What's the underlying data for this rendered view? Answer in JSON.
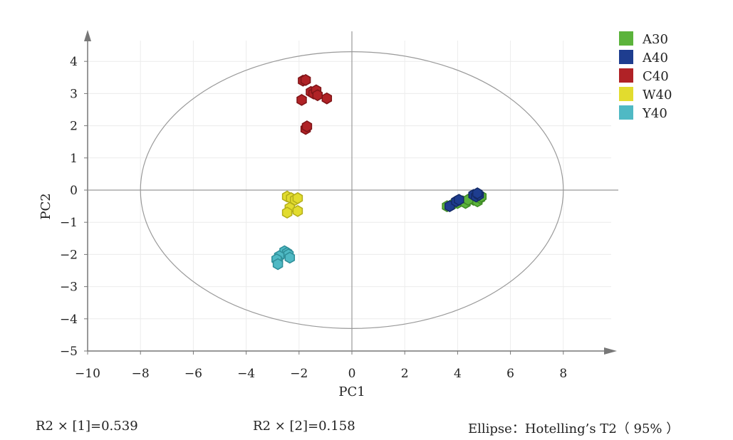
{
  "chart_data": {
    "type": "scatter",
    "title": "",
    "xlabel": "PC1",
    "ylabel": "PC2",
    "xlim": [
      -10,
      10
    ],
    "ylim": [
      -5,
      5
    ],
    "x_ticks": [
      -10,
      -8,
      -6,
      -4,
      -2,
      0,
      2,
      4,
      6,
      8
    ],
    "y_ticks": [
      4,
      3,
      2,
      1,
      0,
      -1,
      -2,
      -3,
      -4,
      -5
    ],
    "x_tick_labels": [
      "−10",
      "−8",
      "−6",
      "−4",
      "−2",
      "0",
      "2",
      "4",
      "6",
      "8"
    ],
    "y_tick_labels": [
      "4",
      "3",
      "2",
      "1",
      "0",
      "−1",
      "−2",
      "−3",
      "−4",
      "−5"
    ],
    "grid": true,
    "legend_position": "top-right",
    "ellipse": {
      "center": [
        0,
        0
      ],
      "semi_axis_x": 8.0,
      "semi_axis_y": 4.3
    },
    "series": [
      {
        "name": "A30",
        "color": "#5bb33b",
        "stroke": "#3f8a25",
        "points": [
          [
            3.6,
            -0.5
          ],
          [
            3.8,
            -0.45
          ],
          [
            4.0,
            -0.4
          ],
          [
            4.2,
            -0.35
          ],
          [
            4.3,
            -0.4
          ],
          [
            4.5,
            -0.25
          ],
          [
            4.6,
            -0.3
          ],
          [
            4.7,
            -0.2
          ],
          [
            4.75,
            -0.35
          ],
          [
            4.85,
            -0.25
          ],
          [
            4.9,
            -0.2
          ],
          [
            4.4,
            -0.3
          ]
        ]
      },
      {
        "name": "A40",
        "color": "#1e3d8f",
        "stroke": "#142a66",
        "points": [
          [
            3.7,
            -0.5
          ],
          [
            3.95,
            -0.35
          ],
          [
            4.05,
            -0.3
          ],
          [
            4.6,
            -0.15
          ],
          [
            4.7,
            -0.2
          ],
          [
            4.8,
            -0.15
          ],
          [
            4.75,
            -0.1
          ]
        ]
      },
      {
        "name": "C40",
        "color": "#b02226",
        "stroke": "#7e1417",
        "points": [
          [
            -1.85,
            3.4
          ],
          [
            -1.75,
            3.42
          ],
          [
            -1.55,
            3.05
          ],
          [
            -1.45,
            3.0
          ],
          [
            -1.35,
            3.1
          ],
          [
            -1.3,
            2.95
          ],
          [
            -0.95,
            2.85
          ],
          [
            -1.9,
            2.8
          ],
          [
            -1.75,
            1.9
          ],
          [
            -1.7,
            1.98
          ]
        ]
      },
      {
        "name": "W40",
        "color": "#e2dc2e",
        "stroke": "#b3ad1a",
        "points": [
          [
            -2.45,
            -0.2
          ],
          [
            -2.3,
            -0.25
          ],
          [
            -2.15,
            -0.3
          ],
          [
            -2.05,
            -0.25
          ],
          [
            -2.35,
            -0.55
          ],
          [
            -2.45,
            -0.7
          ],
          [
            -2.05,
            -0.65
          ]
        ]
      },
      {
        "name": "Y40",
        "color": "#4fb9c4",
        "stroke": "#2e8e98",
        "points": [
          [
            -2.55,
            -1.9
          ],
          [
            -2.45,
            -1.95
          ],
          [
            -2.4,
            -2.0
          ],
          [
            -2.35,
            -2.1
          ],
          [
            -2.75,
            -2.05
          ],
          [
            -2.8,
            -2.2
          ],
          [
            -2.85,
            -2.15
          ],
          [
            -2.8,
            -2.3
          ]
        ]
      }
    ]
  },
  "footer": {
    "r2x1": "R2 × [1]=0.539",
    "r2x2": "R2 × [2]=0.158",
    "ellipse_note": "Ellipse：Hotelling’s T2（ 95% ）"
  }
}
